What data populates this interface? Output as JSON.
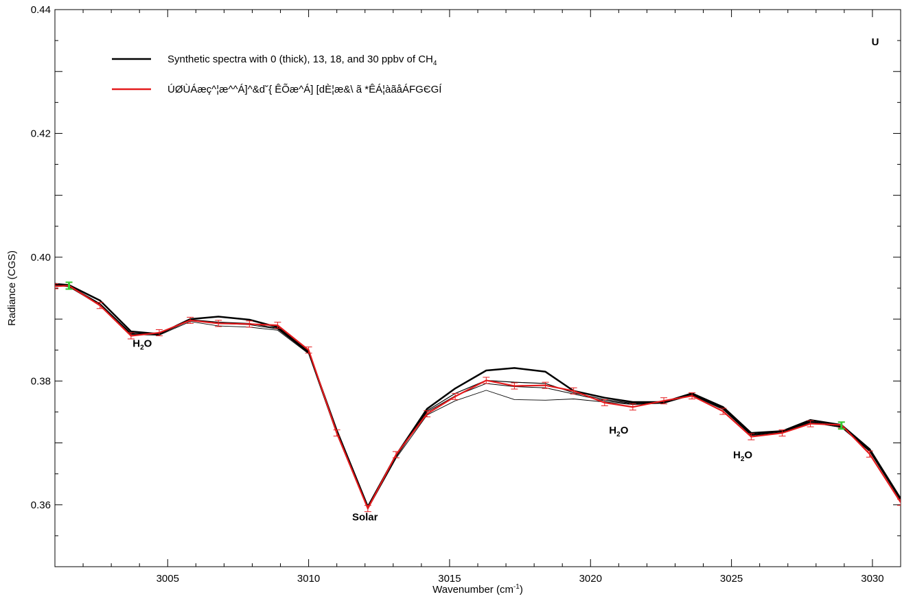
{
  "chart_data": {
    "type": "line",
    "title": "",
    "xlabel": "Wavenumber (cm",
    "xlabel_sup": "-1",
    "xlabel_end": ")",
    "ylabel": "Radiance (CGS)",
    "xlim": [
      3001.0,
      3031.0
    ],
    "ylim": [
      0.35,
      0.44
    ],
    "x_ticks": [
      3005,
      3010,
      3015,
      3020,
      3025,
      3030
    ],
    "y_ticks": [
      0.36,
      0.38,
      0.4,
      0.42,
      0.44
    ],
    "y_tick_labels": [
      "0.36",
      "0.38",
      "0.40",
      "0.42",
      "0.44"
    ],
    "grid": false,
    "legend_position": "top-left",
    "corner_label": "U",
    "legend": [
      {
        "text": "Synthetic spectra with 0 (thick), 13, 18, and 30 ppbv of CH",
        "subscript": "4",
        "color": "#000000"
      },
      {
        "text": "ÚØÙÁæç^¦æ^^Á]^&d˘{ ÊÕæ^Á] [dÈ¦æ&\\ ã *ÊÁ¦àãåÁFGЄGÍ",
        "subscript": "",
        "color": "#e41a1c"
      }
    ],
    "annotations": [
      {
        "text": "H",
        "sub": "2",
        "tail": "O",
        "x": 3004.1,
        "y": 0.3855
      },
      {
        "text": "Solar",
        "sub": "",
        "tail": "",
        "x": 3012.0,
        "y": 0.3575
      },
      {
        "text": "H",
        "sub": "2",
        "tail": "O",
        "x": 3021.0,
        "y": 0.3715
      },
      {
        "text": "H",
        "sub": "2",
        "tail": "O",
        "x": 3025.4,
        "y": 0.3675
      }
    ],
    "series": [
      {
        "name": "0 ppbv (thick)",
        "color": "#000000",
        "width": 2.5,
        "x": [
          3001.0,
          3001.5,
          3002.6,
          3003.7,
          3004.7,
          3005.8,
          3006.8,
          3007.9,
          3008.9,
          3010.0,
          3011.0,
          3012.1,
          3013.1,
          3014.2,
          3015.2,
          3016.3,
          3017.3,
          3018.4,
          3019.4,
          3020.5,
          3021.5,
          3022.6,
          3023.6,
          3024.7,
          3025.7,
          3026.8,
          3027.8,
          3028.9,
          3029.9,
          3031.0
        ],
        "y": [
          0.3957,
          0.3955,
          0.393,
          0.388,
          0.3876,
          0.39,
          0.3904,
          0.3899,
          0.3887,
          0.3847,
          0.372,
          0.3597,
          0.368,
          0.3755,
          0.3788,
          0.3817,
          0.3821,
          0.3815,
          0.3784,
          0.3773,
          0.3766,
          0.3766,
          0.378,
          0.3758,
          0.3716,
          0.3719,
          0.3737,
          0.3729,
          0.369,
          0.361
        ]
      },
      {
        "name": "13 ppbv",
        "color": "#000000",
        "width": 1.2,
        "x": [
          3001.0,
          3001.5,
          3002.6,
          3003.7,
          3004.7,
          3005.8,
          3006.8,
          3007.9,
          3008.9,
          3010.0,
          3011.0,
          3012.1,
          3013.1,
          3014.2,
          3015.2,
          3016.3,
          3017.3,
          3018.4,
          3019.4,
          3020.5,
          3021.5,
          3022.6,
          3023.6,
          3024.7,
          3025.7,
          3026.8,
          3027.8,
          3028.9,
          3029.9,
          3031.0
        ],
        "y": [
          0.3956,
          0.3954,
          0.3925,
          0.3877,
          0.3876,
          0.3899,
          0.3895,
          0.3893,
          0.3885,
          0.3846,
          0.3717,
          0.3595,
          0.3678,
          0.3752,
          0.378,
          0.3801,
          0.3798,
          0.3796,
          0.3781,
          0.377,
          0.3764,
          0.3765,
          0.3779,
          0.3756,
          0.3714,
          0.3718,
          0.3735,
          0.3727,
          0.3688,
          0.3609
        ]
      },
      {
        "name": "18 ppbv",
        "color": "#000000",
        "width": 1.0,
        "x": [
          3001.0,
          3001.5,
          3002.6,
          3003.7,
          3004.7,
          3005.8,
          3006.8,
          3007.9,
          3008.9,
          3010.0,
          3011.0,
          3012.1,
          3013.1,
          3014.2,
          3015.2,
          3016.3,
          3017.3,
          3018.4,
          3019.4,
          3020.5,
          3021.5,
          3022.6,
          3023.6,
          3024.7,
          3025.7,
          3026.8,
          3027.8,
          3028.9,
          3029.9,
          3031.0
        ],
        "y": [
          0.3956,
          0.3953,
          0.3924,
          0.3876,
          0.3875,
          0.3898,
          0.3893,
          0.3891,
          0.3884,
          0.3845,
          0.3716,
          0.3594,
          0.3677,
          0.375,
          0.3776,
          0.3796,
          0.3791,
          0.3789,
          0.3779,
          0.3768,
          0.3763,
          0.3765,
          0.3778,
          0.3755,
          0.3713,
          0.3717,
          0.3734,
          0.3726,
          0.3687,
          0.3608
        ]
      },
      {
        "name": "30 ppbv",
        "color": "#000000",
        "width": 0.9,
        "x": [
          3001.0,
          3001.5,
          3002.6,
          3003.7,
          3004.7,
          3005.8,
          3006.8,
          3007.9,
          3008.9,
          3010.0,
          3011.0,
          3012.1,
          3013.1,
          3014.2,
          3015.2,
          3016.3,
          3017.3,
          3018.4,
          3019.4,
          3020.5,
          3021.5,
          3022.6,
          3023.6,
          3024.7,
          3025.7,
          3026.8,
          3027.8,
          3028.9,
          3029.9,
          3031.0
        ],
        "y": [
          0.3955,
          0.3952,
          0.3922,
          0.3875,
          0.3874,
          0.3896,
          0.3889,
          0.3887,
          0.3882,
          0.3844,
          0.3714,
          0.3593,
          0.3675,
          0.3745,
          0.3768,
          0.3785,
          0.377,
          0.3769,
          0.3771,
          0.3766,
          0.3762,
          0.3764,
          0.3777,
          0.3754,
          0.3712,
          0.3716,
          0.3733,
          0.3725,
          0.3686,
          0.3607
        ]
      },
      {
        "name": "observed",
        "color": "#e41a1c",
        "width": 2.2,
        "x": [
          3001.0,
          3001.5,
          3002.6,
          3003.7,
          3004.7,
          3005.8,
          3006.8,
          3007.9,
          3008.9,
          3010.0,
          3011.0,
          3012.1,
          3013.1,
          3014.2,
          3015.2,
          3016.3,
          3017.3,
          3018.4,
          3019.4,
          3020.5,
          3021.5,
          3022.6,
          3023.6,
          3024.7,
          3025.7,
          3026.8,
          3027.8,
          3028.9,
          3029.9,
          3031.0
        ],
        "y": [
          0.3953,
          0.3954,
          0.3922,
          0.3873,
          0.3878,
          0.3898,
          0.3893,
          0.3892,
          0.389,
          0.385,
          0.3716,
          0.3594,
          0.3681,
          0.3747,
          0.3775,
          0.3801,
          0.3792,
          0.3793,
          0.3784,
          0.3765,
          0.3758,
          0.3768,
          0.3776,
          0.3751,
          0.371,
          0.3716,
          0.3731,
          0.3729,
          0.3682,
          0.3604
        ],
        "err": [
          0.0004,
          0.0005,
          0.0005,
          0.0005,
          0.0005,
          0.0005,
          0.0005,
          0.0005,
          0.0005,
          0.0005,
          0.0005,
          0.0005,
          0.0005,
          0.0005,
          0.0005,
          0.0005,
          0.0005,
          0.0005,
          0.0005,
          0.0005,
          0.0005,
          0.0005,
          0.0005,
          0.0005,
          0.0005,
          0.0005,
          0.0005,
          0.0005,
          0.0005,
          0.0005
        ]
      }
    ],
    "highlight_points": [
      {
        "x": 3001.5,
        "y": 0.3954,
        "color": "#33cc33"
      },
      {
        "x": 3028.9,
        "y": 0.3728,
        "color": "#33cc33"
      }
    ]
  }
}
